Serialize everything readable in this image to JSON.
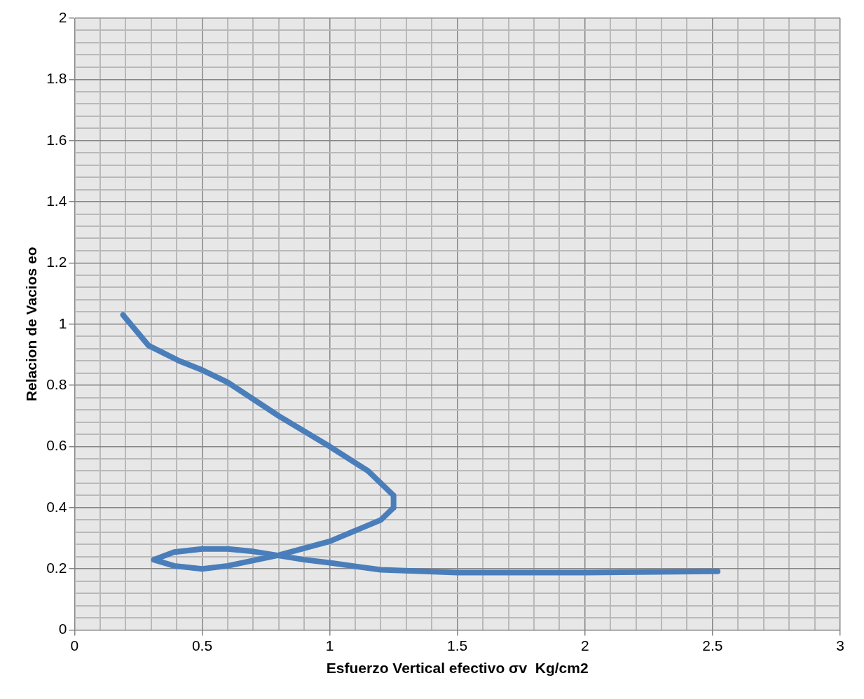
{
  "chart_data": {
    "type": "line",
    "xlabel": "Esfuerzo Vertical efectivo σv  Kg/cm2",
    "ylabel": "Relacion de Vacios eo",
    "xlim": [
      0,
      3
    ],
    "ylim": [
      0,
      2
    ],
    "xticks": [
      0,
      {
        "value": 0.1,
        "label": null
      },
      {
        "value": 0.2,
        "label": null
      },
      {
        "value": 0.3,
        "label": null
      },
      {
        "value": 0.4,
        "label": null
      },
      0.5,
      {
        "value": 0.6,
        "label": null
      },
      {
        "value": 0.7,
        "label": null
      },
      {
        "value": 0.8,
        "label": null
      },
      {
        "value": 0.9,
        "label": null
      },
      1,
      {
        "value": 1.1,
        "label": null
      },
      {
        "value": 1.2,
        "label": null
      },
      {
        "value": 1.3,
        "label": null
      },
      {
        "value": 1.4,
        "label": null
      },
      1.5,
      {
        "value": 1.6,
        "label": null
      },
      {
        "value": 1.7,
        "label": null
      },
      {
        "value": 1.8,
        "label": null
      },
      {
        "value": 1.9,
        "label": null
      },
      2,
      {
        "value": 2.1,
        "label": null
      },
      {
        "value": 2.2,
        "label": null
      },
      {
        "value": 2.3,
        "label": null
      },
      {
        "value": 2.4,
        "label": null
      },
      2.5,
      {
        "value": 2.6,
        "label": null
      },
      {
        "value": 2.7,
        "label": null
      },
      {
        "value": 2.8,
        "label": null
      },
      {
        "value": 2.9,
        "label": null
      },
      3
    ],
    "yticks": [
      0,
      {
        "value": 0.04,
        "label": null
      },
      {
        "value": 0.08,
        "label": null
      },
      {
        "value": 0.12,
        "label": null
      },
      {
        "value": 0.16,
        "label": null
      },
      0.2,
      {
        "value": 0.24,
        "label": null
      },
      {
        "value": 0.28,
        "label": null
      },
      {
        "value": 0.32,
        "label": null
      },
      {
        "value": 0.36,
        "label": null
      },
      0.4,
      {
        "value": 0.44,
        "label": null
      },
      {
        "value": 0.48,
        "label": null
      },
      {
        "value": 0.52,
        "label": null
      },
      {
        "value": 0.56,
        "label": null
      },
      0.6,
      {
        "value": 0.64,
        "label": null
      },
      {
        "value": 0.68,
        "label": null
      },
      {
        "value": 0.72,
        "label": null
      },
      {
        "value": 0.76,
        "label": null
      },
      0.8,
      {
        "value": 0.84,
        "label": null
      },
      {
        "value": 0.88,
        "label": null
      },
      {
        "value": 0.92,
        "label": null
      },
      {
        "value": 0.96,
        "label": null
      },
      1,
      {
        "value": 1.04,
        "label": null
      },
      {
        "value": 1.08,
        "label": null
      },
      {
        "value": 1.12,
        "label": null
      },
      {
        "value": 1.16,
        "label": null
      },
      1.2,
      {
        "value": 1.24,
        "label": null
      },
      {
        "value": 1.28,
        "label": null
      },
      {
        "value": 1.32,
        "label": null
      },
      {
        "value": 1.36,
        "label": null
      },
      1.4,
      {
        "value": 1.44,
        "label": null
      },
      {
        "value": 1.48,
        "label": null
      },
      {
        "value": 1.52,
        "label": null
      },
      {
        "value": 1.56,
        "label": null
      },
      1.6,
      {
        "value": 1.64,
        "label": null
      },
      {
        "value": 1.68,
        "label": null
      },
      {
        "value": 1.72,
        "label": null
      },
      {
        "value": 1.76,
        "label": null
      },
      1.8,
      {
        "value": 1.84,
        "label": null
      },
      {
        "value": 1.88,
        "label": null
      },
      {
        "value": 1.92,
        "label": null
      },
      {
        "value": 1.96,
        "label": null
      },
      2
    ],
    "grid": true,
    "marker": "none",
    "line_style": "solid",
    "series": [
      {
        "color": "#4a7ebb",
        "x": [
          0.19,
          0.29,
          0.41,
          0.5,
          0.6,
          0.8,
          1.0,
          1.15,
          1.25,
          1.25,
          1.2,
          1.0,
          0.8,
          0.6,
          0.5,
          0.39,
          0.31,
          0.39,
          0.5,
          0.6,
          0.7,
          0.9,
          1.0,
          1.2,
          1.5,
          2.0,
          2.52
        ],
        "values": [
          1.03,
          0.93,
          0.88,
          0.85,
          0.81,
          0.7,
          0.6,
          0.52,
          0.44,
          0.4,
          0.36,
          0.29,
          0.245,
          0.21,
          0.2,
          0.21,
          0.23,
          0.255,
          0.265,
          0.265,
          0.257,
          0.23,
          0.22,
          0.197,
          0.188,
          0.188,
          0.192
        ]
      }
    ]
  }
}
